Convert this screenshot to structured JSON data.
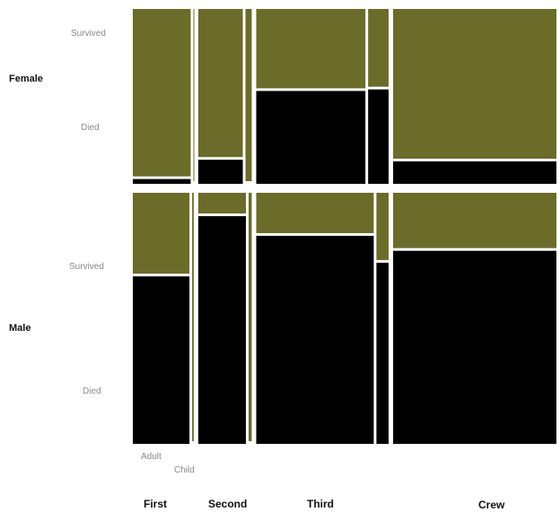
{
  "chart_data": {
    "type": "mosaic",
    "colors": {
      "survived": "#6b6b2a",
      "died": "#000000"
    },
    "classes": [
      "First",
      "Second",
      "Third",
      "Crew"
    ],
    "sexes": [
      "Female",
      "Male"
    ],
    "ages": [
      "Adult",
      "Child"
    ],
    "outcomes": [
      "Survived",
      "Died"
    ],
    "counts": {
      "First": {
        "Female": {
          "Adult": {
            "Survived": 140,
            "Died": 4
          },
          "Child": {
            "Survived": 1,
            "Died": 0
          }
        },
        "Male": {
          "Adult": {
            "Survived": 57,
            "Died": 118
          },
          "Child": {
            "Survived": 5,
            "Died": 0
          }
        }
      },
      "Second": {
        "Female": {
          "Adult": {
            "Survived": 80,
            "Died": 13
          },
          "Child": {
            "Survived": 13,
            "Died": 0
          }
        },
        "Male": {
          "Adult": {
            "Survived": 14,
            "Died": 154
          },
          "Child": {
            "Survived": 11,
            "Died": 0
          }
        }
      },
      "Third": {
        "Female": {
          "Adult": {
            "Survived": 76,
            "Died": 89
          },
          "Child": {
            "Survived": 14,
            "Died": 17
          }
        },
        "Male": {
          "Adult": {
            "Survived": 75,
            "Died": 387
          },
          "Child": {
            "Survived": 13,
            "Died": 35
          }
        }
      },
      "Crew": {
        "Female": {
          "Adult": {
            "Survived": 20,
            "Died": 3
          },
          "Child": {
            "Survived": 0,
            "Died": 0
          }
        },
        "Male": {
          "Adult": {
            "Survived": 192,
            "Died": 670
          },
          "Child": {
            "Survived": 0,
            "Died": 0
          }
        }
      }
    }
  },
  "labels": {
    "female": "Female",
    "male": "Male",
    "survived": "Survived",
    "died": "Died",
    "adult": "Adult",
    "child": "Child"
  }
}
